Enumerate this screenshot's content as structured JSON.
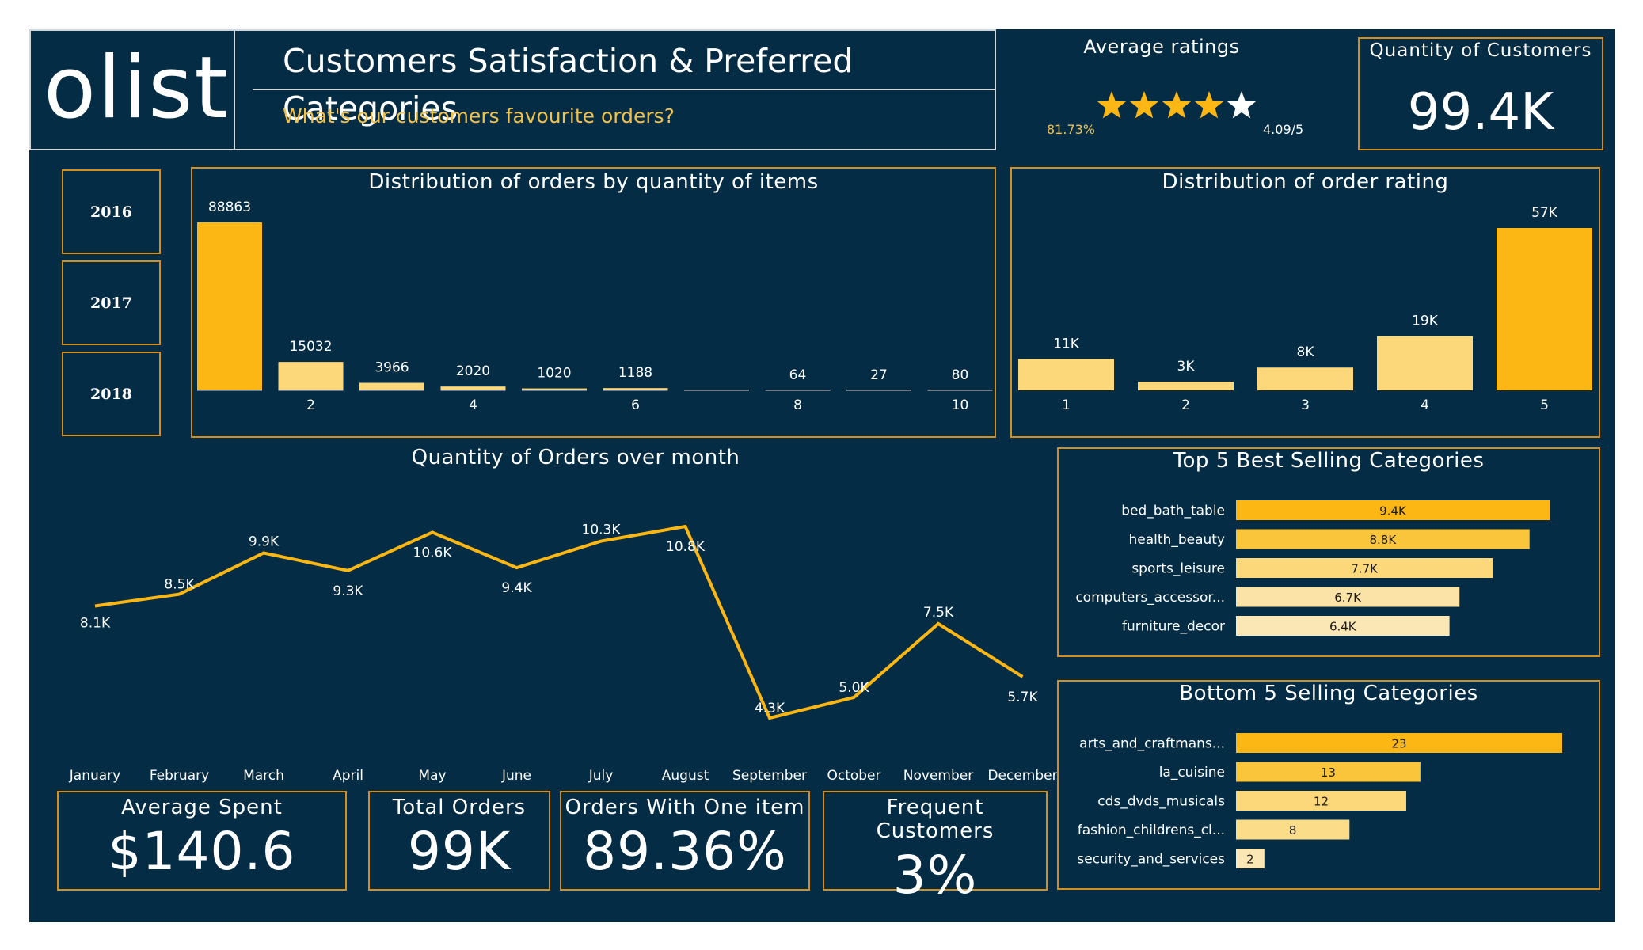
{
  "header": {
    "logo": "olist",
    "title": "Customers Satisfaction & Preferred Categories",
    "subtitle": "What's our customers favourite orders?"
  },
  "ratings": {
    "title": "Average ratings",
    "percent": "81.73%",
    "score_text": "4.09/5",
    "stars_value": 4.09,
    "stars_max": 5
  },
  "customers": {
    "title": "Quantity of Customers",
    "value": "99.4K"
  },
  "years": [
    "2016",
    "2017",
    "2018"
  ],
  "colors": {
    "background": "#042c45",
    "accent": "#fdb714",
    "accent_light": "#fcd87a",
    "accent_pale": "#fae7b5",
    "border": "#d48e1b",
    "subtitle": "#f0c04a"
  },
  "chart_data": [
    {
      "type": "bar",
      "title": "Distribution of orders by quantity of items",
      "categories": [
        1,
        2,
        3,
        4,
        5,
        6,
        7,
        8,
        9,
        10
      ],
      "values": [
        88863,
        15032,
        3966,
        2020,
        1020,
        1188,
        0,
        64,
        27,
        80
      ],
      "data_labels": [
        "88863",
        "15032",
        "3966",
        "2020",
        "1020",
        "1188",
        "",
        "64",
        "27",
        "80"
      ],
      "tick_labels": [
        "2",
        "4",
        "6",
        "8",
        "10"
      ],
      "tick_positions": [
        2,
        4,
        6,
        8,
        10
      ]
    },
    {
      "type": "bar",
      "title": "Distribution of order rating",
      "categories": [
        "1",
        "2",
        "3",
        "4",
        "5"
      ],
      "values": [
        11000,
        3000,
        8000,
        19000,
        57000
      ],
      "data_labels": [
        "11K",
        "3K",
        "8K",
        "19K",
        "57K"
      ]
    },
    {
      "type": "line",
      "title": "Quantity of Orders over month",
      "categories": [
        "January",
        "February",
        "March",
        "April",
        "May",
        "June",
        "July",
        "August",
        "September",
        "October",
        "November",
        "December"
      ],
      "values": [
        8100,
        8500,
        9900,
        9300,
        10600,
        9400,
        10300,
        10800,
        4300,
        5000,
        7500,
        5700
      ],
      "data_labels": [
        "8.1K",
        "8.5K",
        "9.9K",
        "9.3K",
        "10.6K",
        "9.4K",
        "10.3K",
        "10.8K",
        "4.3K",
        "5.0K",
        "7.5K",
        "5.7K"
      ]
    },
    {
      "type": "bar",
      "orientation": "horizontal",
      "title": "Top 5 Best Selling Categories",
      "categories": [
        "bed_bath_table",
        "health_beauty",
        "sports_leisure",
        "computers_accessor...",
        "furniture_decor"
      ],
      "values": [
        9400,
        8800,
        7700,
        6700,
        6400
      ],
      "data_labels": [
        "9.4K",
        "8.8K",
        "7.7K",
        "6.7K",
        "6.4K"
      ]
    },
    {
      "type": "bar",
      "orientation": "horizontal",
      "title": "Bottom 5 Selling Categories",
      "categories": [
        "arts_and_craftmans...",
        "la_cuisine",
        "cds_dvds_musicals",
        "fashion_childrens_cl...",
        "security_and_services"
      ],
      "values": [
        23,
        13,
        12,
        8,
        2
      ],
      "data_labels": [
        "23",
        "13",
        "12",
        "8",
        "2"
      ]
    }
  ],
  "kpis": [
    {
      "title": "Average Spent",
      "value": "$140.6"
    },
    {
      "title": "Total Orders",
      "value": "99K"
    },
    {
      "title": "Orders With One item",
      "value": "89.36%"
    },
    {
      "title": "Frequent Customers",
      "value": "3%"
    }
  ]
}
